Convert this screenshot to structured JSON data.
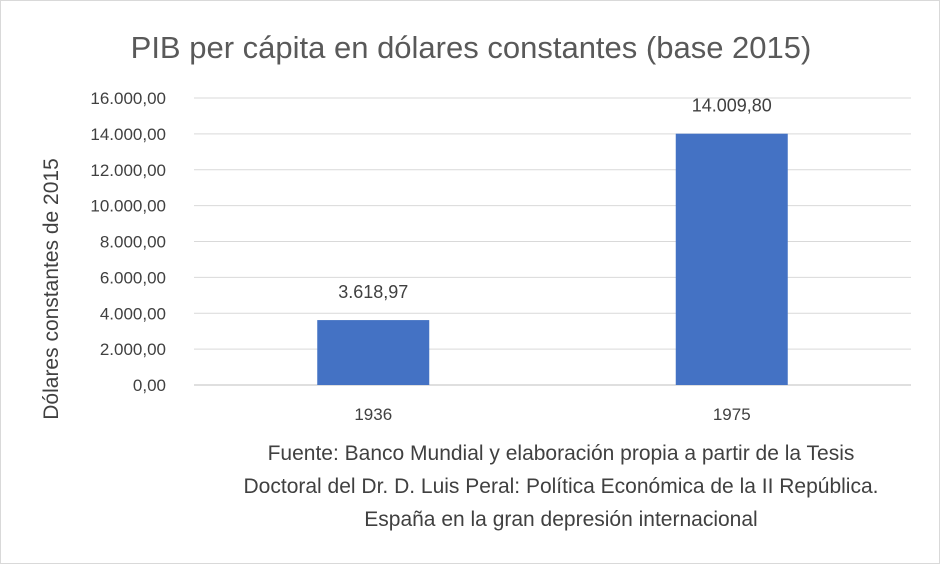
{
  "chart_data": {
    "type": "bar",
    "title": "PIB per cápita en dólares constantes (base 2015)",
    "ylabel": "Dólares constantes  de 2015",
    "xlabel": "",
    "categories": [
      "1936",
      "1975"
    ],
    "series": [
      {
        "values": [
          3618.97,
          14009.8
        ],
        "color": "#4472c4"
      }
    ],
    "data_labels": [
      "3.618,97",
      "14.009,80"
    ],
    "ylim": [
      0,
      16000
    ],
    "yticks": [
      0,
      2000,
      4000,
      6000,
      8000,
      10000,
      12000,
      14000,
      16000
    ],
    "ytick_labels": [
      "0,00",
      "2.000,00",
      "4.000,00",
      "6.000,00",
      "8.000,00",
      "10.000,00",
      "12.000,00",
      "14.000,00",
      "16.000,00"
    ],
    "grid": true,
    "legend": "none",
    "note_lines": [
      "Fuente: Banco Mundial y elaboración propia a partir de la Tesis",
      "Doctoral del Dr. D. Luis Peral: Política Económica de la II República.",
      "España en la gran depresión internacional"
    ]
  }
}
